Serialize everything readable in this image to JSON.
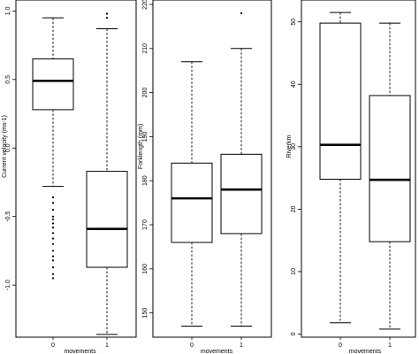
{
  "chart_data": [
    {
      "type": "boxplot",
      "ylabel": "Current velocity (ms-1)",
      "xlabel": "movements",
      "categories": [
        "0",
        "1"
      ],
      "ylim": [
        -1.38,
        1.08
      ],
      "yticks": [
        -1.0,
        -0.5,
        0.0,
        0.5,
        1.0
      ],
      "ytick_labels": [
        "-1.0",
        "-0.5",
        "0.0",
        "0.5",
        "1.0"
      ],
      "boxes": [
        {
          "whisker_low": -0.28,
          "q1": 0.28,
          "median": 0.49,
          "q3": 0.65,
          "whisker_high": 0.95,
          "outliers": [
            -0.36,
            -0.4,
            -0.45,
            -0.5,
            -0.52,
            -0.55,
            -0.58,
            -0.62,
            -0.66,
            -0.7,
            -0.75,
            -0.79,
            -0.82,
            -0.87,
            -0.92,
            -0.95
          ]
        },
        {
          "whisker_low": -1.36,
          "q1": -0.87,
          "median": -0.59,
          "q3": -0.17,
          "whisker_high": 0.87,
          "outliers": [
            0.95,
            0.98
          ]
        }
      ]
    },
    {
      "type": "boxplot",
      "ylabel": "Forklength (mm)",
      "xlabel": "movements",
      "categories": [
        "0",
        "1"
      ],
      "ylim": [
        144.5,
        221
      ],
      "yticks": [
        150,
        160,
        170,
        180,
        190,
        200,
        210,
        220
      ],
      "ytick_labels": [
        "150",
        "160",
        "170",
        "180",
        "190",
        "200",
        "210",
        "220"
      ],
      "boxes": [
        {
          "whisker_low": 147,
          "q1": 166,
          "median": 176,
          "q3": 184,
          "whisker_high": 207,
          "outliers": []
        },
        {
          "whisker_low": 147,
          "q1": 168,
          "median": 178,
          "q3": 186,
          "whisker_high": 210,
          "outliers": [
            218
          ]
        }
      ]
    },
    {
      "type": "boxplot",
      "ylabel": "Riverkm",
      "xlabel": "movements",
      "categories": [
        "0",
        "1"
      ],
      "ylim": [
        -0.5,
        53.5
      ],
      "yticks": [
        0,
        10,
        20,
        30,
        40,
        50
      ],
      "ytick_labels": [
        "0",
        "10",
        "20",
        "30",
        "40",
        "50"
      ],
      "boxes": [
        {
          "whisker_low": 1.8,
          "q1": 24.8,
          "median": 30.3,
          "q3": 49.8,
          "whisker_high": 51.5,
          "outliers": []
        },
        {
          "whisker_low": 0.8,
          "q1": 14.8,
          "median": 24.7,
          "q3": 38.2,
          "whisker_high": 49.8,
          "outliers": []
        }
      ]
    }
  ]
}
